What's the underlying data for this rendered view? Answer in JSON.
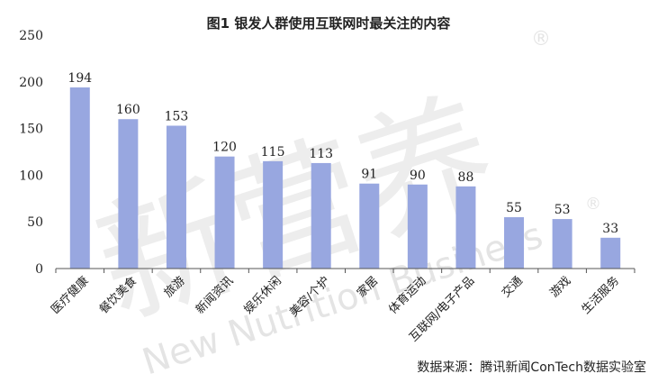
{
  "chart_data": {
    "type": "bar",
    "title": "图1 银发人群使用互联网时最关注的内容",
    "categories": [
      "医疗健康",
      "餐饮美食",
      "旅游",
      "新闻资讯",
      "娱乐休闲",
      "美容/个护",
      "家居",
      "体育运动",
      "互联网/电子产品",
      "交通",
      "游戏",
      "生活服务"
    ],
    "values": [
      194,
      160,
      153,
      120,
      115,
      113,
      91,
      90,
      88,
      55,
      53,
      33
    ],
    "ylim": [
      0,
      250
    ],
    "yticks": [
      0,
      50,
      100,
      150,
      200,
      250
    ],
    "xlabel": "",
    "ylabel": "",
    "grid": false,
    "bar_color": "#98a7e0",
    "source": "数据来源：腾讯新闻ConTech数据实验室"
  },
  "watermark": {
    "main": "新营养",
    "sub": "New Nutrition Business",
    "mark": "®"
  }
}
